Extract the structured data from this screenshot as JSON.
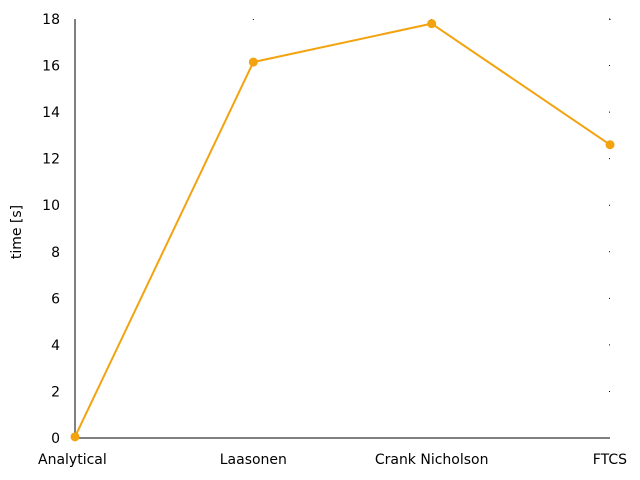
{
  "chart_data": {
    "type": "line",
    "title": "",
    "xlabel": "",
    "ylabel": "time [s]",
    "categories": [
      "Analytical",
      "Laasonen",
      "Crank Nicholson",
      "FTCS"
    ],
    "series": [
      {
        "values": [
          0.05,
          16.15,
          17.8,
          12.6
        ]
      }
    ],
    "ylim": [
      0,
      18
    ],
    "yticks": [
      0,
      2,
      4,
      6,
      8,
      10,
      12,
      14,
      16,
      18
    ],
    "grid": false,
    "legend": "none",
    "colors": {
      "series": "#f2a30f",
      "axis": "#000000"
    }
  }
}
